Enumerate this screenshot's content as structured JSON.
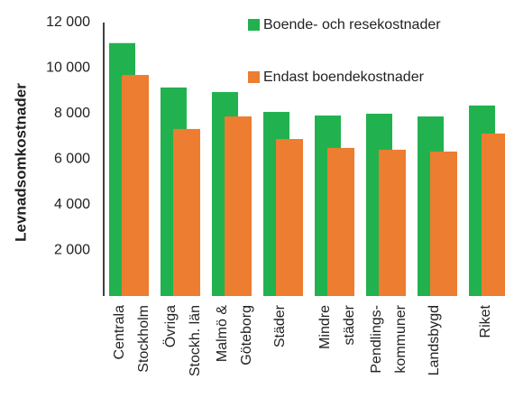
{
  "chart_data": {
    "type": "bar",
    "y_label": "Levnadsomkostnader",
    "categories": [
      [
        "Centrala",
        "Stockholm"
      ],
      [
        "Övriga",
        "Stockh. län"
      ],
      [
        "Malmö &",
        "Göteborg"
      ],
      [
        "Städer"
      ],
      [
        "Mindre",
        "städer"
      ],
      [
        "Pendlings-",
        "kommuner"
      ],
      [
        "Landsbygd"
      ],
      [
        "Riket"
      ]
    ],
    "series": [
      {
        "name": "Boende- och resekostnader",
        "color": "#21b24f",
        "values": [
          11100,
          9150,
          8950,
          8080,
          7920,
          8000,
          7880,
          8360
        ]
      },
      {
        "name": "Endast boendekostnader",
        "color": "#ed7d31",
        "values": [
          9700,
          7330,
          7880,
          6890,
          6500,
          6420,
          6340,
          7130
        ]
      }
    ],
    "ylim": [
      0,
      12000
    ],
    "yticks": [
      {
        "value": 2000,
        "label": "2 000"
      },
      {
        "value": 4000,
        "label": "4 000"
      },
      {
        "value": 6000,
        "label": "6 000"
      },
      {
        "value": 8000,
        "label": "8 000"
      },
      {
        "value": 10000,
        "label": "10 000"
      },
      {
        "value": 12000,
        "label": "12 000"
      }
    ],
    "grid": false
  }
}
